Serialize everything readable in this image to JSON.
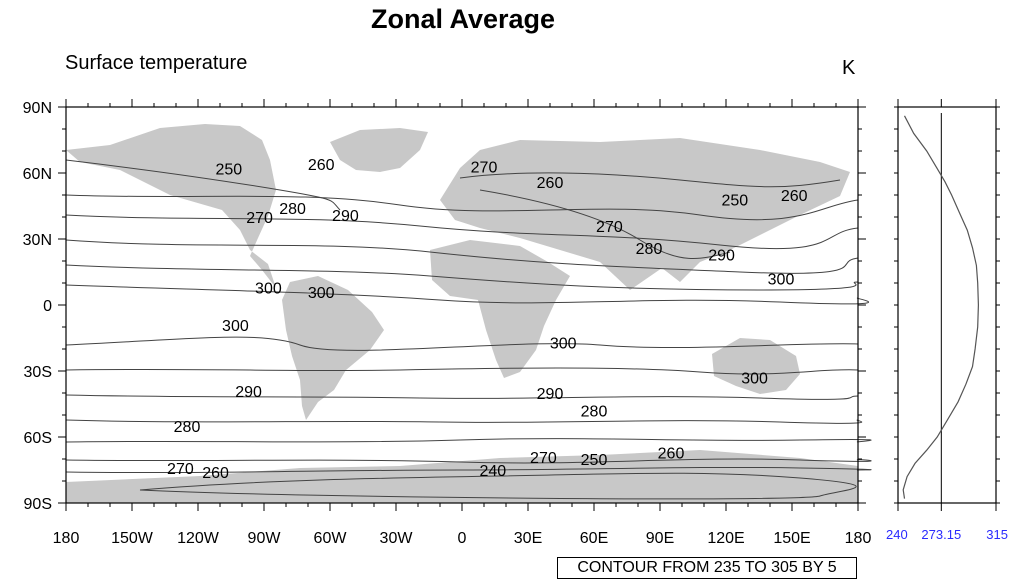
{
  "title": "Zonal Average",
  "left_string": "Surface temperature",
  "right_string": "K",
  "info_label": "CONTOUR FROM 235 TO 305 BY 5",
  "colors": {
    "land": "#c8c8c8",
    "contour": "#444444",
    "zonal_ticks": "#2b2bff"
  },
  "map": {
    "lat_labels": [
      "90N",
      "60N",
      "30N",
      "0",
      "30S",
      "60S",
      "90S"
    ],
    "lon_labels": [
      "180",
      "150W",
      "120W",
      "90W",
      "60W",
      "30W",
      "0",
      "30E",
      "60E",
      "90E",
      "120E",
      "150E",
      "180"
    ],
    "contour_labels": [
      {
        "text": "250",
        "lon": -106,
        "lat": 62
      },
      {
        "text": "260",
        "lon": -64,
        "lat": 64
      },
      {
        "text": "270",
        "lon": -92,
        "lat": 40
      },
      {
        "text": "280",
        "lon": -77,
        "lat": 44
      },
      {
        "text": "290",
        "lon": -53,
        "lat": 41
      },
      {
        "text": "270",
        "lon": 10,
        "lat": 63
      },
      {
        "text": "260",
        "lon": 40,
        "lat": 56
      },
      {
        "text": "270",
        "lon": 67,
        "lat": 36
      },
      {
        "text": "280",
        "lon": 85,
        "lat": 26
      },
      {
        "text": "290",
        "lon": 118,
        "lat": 23
      },
      {
        "text": "250",
        "lon": 124,
        "lat": 48
      },
      {
        "text": "260",
        "lon": 151,
        "lat": 50
      },
      {
        "text": "300",
        "lon": -88,
        "lat": 8
      },
      {
        "text": "300",
        "lon": -64,
        "lat": 6
      },
      {
        "text": "300",
        "lon": -103,
        "lat": -9
      },
      {
        "text": "300",
        "lon": 46,
        "lat": -17
      },
      {
        "text": "300",
        "lon": 145,
        "lat": 12
      },
      {
        "text": "300",
        "lon": 133,
        "lat": -33
      },
      {
        "text": "290",
        "lon": -97,
        "lat": -39
      },
      {
        "text": "290",
        "lon": 40,
        "lat": -40
      },
      {
        "text": "280",
        "lon": -125,
        "lat": -55
      },
      {
        "text": "280",
        "lon": 60,
        "lat": -48
      },
      {
        "text": "270",
        "lon": -128,
        "lat": -74
      },
      {
        "text": "260",
        "lon": -112,
        "lat": -76
      },
      {
        "text": "240",
        "lon": 14,
        "lat": -75
      },
      {
        "text": "270",
        "lon": 37,
        "lat": -69
      },
      {
        "text": "250",
        "lon": 60,
        "lat": -70
      },
      {
        "text": "260",
        "lon": 95,
        "lat": -67
      }
    ]
  },
  "zonal_panel": {
    "x_labels": [
      "240",
      "273.15",
      "315"
    ],
    "x_range": [
      240,
      315
    ],
    "reference_value": 273.15
  },
  "chart_data": {
    "type": "line",
    "title": "",
    "xlabel": "",
    "ylabel": "",
    "xlim": [
      240,
      315
    ],
    "ylim": [
      -90,
      90
    ],
    "series": [
      {
        "x": [
          245,
          244,
          247,
          253,
          262,
          270,
          278,
          286,
          292,
          297,
          299,
          301,
          301.5,
          301,
          300,
          297,
          293,
          287,
          281,
          276,
          270,
          262,
          252,
          245
        ],
        "y": [
          -88,
          -84,
          -78,
          -72,
          -66,
          -60,
          -52,
          -44,
          -36,
          -28,
          -20,
          -10,
          0,
          10,
          18,
          26,
          34,
          42,
          50,
          56,
          62,
          70,
          78,
          86
        ]
      }
    ]
  }
}
